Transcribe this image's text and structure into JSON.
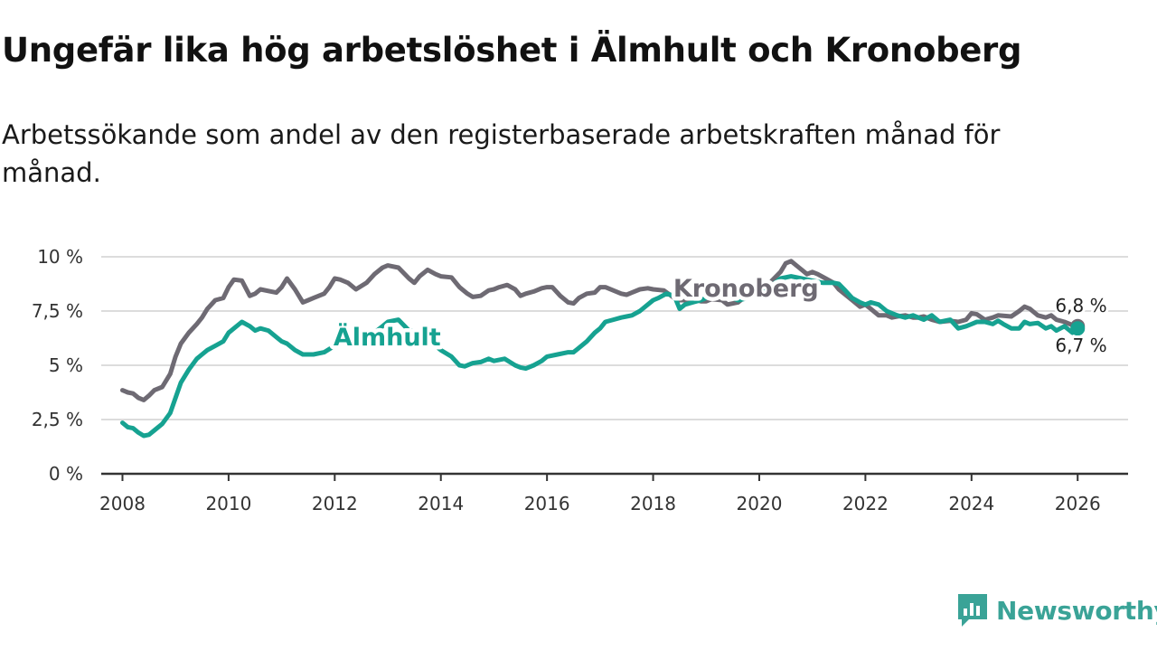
{
  "title": "Ungefär lika hög arbetslöshet i Älmhult och Kronoberg",
  "subtitle": "Arbetssökande som andel av den registerbaserade arbetskraften månad för månad.",
  "logo": {
    "text": "Newsworthy",
    "icon": "newsworthy-logo-icon"
  },
  "colors": {
    "almhult": "#16a291",
    "kronoberg": "#6e6a73",
    "grid": "#dcdcdc",
    "axis": "#333333"
  },
  "chart_data": {
    "type": "line",
    "title": "Ungefär lika hög arbetslöshet i Älmhult och Kronoberg",
    "xlabel": "",
    "ylabel": "",
    "xlim": [
      2007.6,
      2026.95
    ],
    "ylim": [
      0,
      10
    ],
    "x_ticks": [
      {
        "value": 2008,
        "label": "2008"
      },
      {
        "value": 2010,
        "label": "2010"
      },
      {
        "value": 2012,
        "label": "2012"
      },
      {
        "value": 2014,
        "label": "2014"
      },
      {
        "value": 2016,
        "label": "2016"
      },
      {
        "value": 2018,
        "label": "2018"
      },
      {
        "value": 2020,
        "label": "2020"
      },
      {
        "value": 2022,
        "label": "2022"
      },
      {
        "value": 2024,
        "label": "2024"
      },
      {
        "value": 2026,
        "label": "2026"
      }
    ],
    "y_ticks": [
      {
        "value": 0,
        "label": "0 %"
      },
      {
        "value": 2.5,
        "label": "2,5 %"
      },
      {
        "value": 5,
        "label": "5 %"
      },
      {
        "value": 7.5,
        "label": "7,5 %"
      },
      {
        "value": 10,
        "label": "10 %"
      }
    ],
    "grid": true,
    "series": [
      {
        "name": "Kronoberg",
        "label": "Kronoberg",
        "end_label": "6,8 %",
        "points": [
          [
            2008.0,
            3.85
          ],
          [
            2008.1,
            3.75
          ],
          [
            2008.2,
            3.7
          ],
          [
            2008.3,
            3.5
          ],
          [
            2008.4,
            3.4
          ],
          [
            2008.5,
            3.6
          ],
          [
            2008.6,
            3.85
          ],
          [
            2008.75,
            4.0
          ],
          [
            2008.9,
            4.6
          ],
          [
            2009.0,
            5.4
          ],
          [
            2009.1,
            6.0
          ],
          [
            2009.25,
            6.5
          ],
          [
            2009.4,
            6.9
          ],
          [
            2009.5,
            7.2
          ],
          [
            2009.6,
            7.6
          ],
          [
            2009.75,
            8.0
          ],
          [
            2009.9,
            8.1
          ],
          [
            2010.0,
            8.6
          ],
          [
            2010.1,
            8.95
          ],
          [
            2010.25,
            8.9
          ],
          [
            2010.4,
            8.2
          ],
          [
            2010.5,
            8.3
          ],
          [
            2010.6,
            8.5
          ],
          [
            2010.8,
            8.4
          ],
          [
            2010.9,
            8.35
          ],
          [
            2011.0,
            8.6
          ],
          [
            2011.1,
            9.0
          ],
          [
            2011.25,
            8.5
          ],
          [
            2011.4,
            7.9
          ],
          [
            2011.5,
            8.0
          ],
          [
            2011.6,
            8.1
          ],
          [
            2011.8,
            8.3
          ],
          [
            2011.9,
            8.6
          ],
          [
            2012.0,
            9.0
          ],
          [
            2012.1,
            8.95
          ],
          [
            2012.25,
            8.8
          ],
          [
            2012.4,
            8.5
          ],
          [
            2012.6,
            8.8
          ],
          [
            2012.75,
            9.2
          ],
          [
            2012.9,
            9.5
          ],
          [
            2013.0,
            9.6
          ],
          [
            2013.2,
            9.5
          ],
          [
            2013.4,
            9.0
          ],
          [
            2013.5,
            8.8
          ],
          [
            2013.6,
            9.1
          ],
          [
            2013.75,
            9.4
          ],
          [
            2013.9,
            9.2
          ],
          [
            2014.0,
            9.1
          ],
          [
            2014.2,
            9.05
          ],
          [
            2014.35,
            8.6
          ],
          [
            2014.5,
            8.3
          ],
          [
            2014.6,
            8.15
          ],
          [
            2014.75,
            8.2
          ],
          [
            2014.9,
            8.45
          ],
          [
            2015.0,
            8.5
          ],
          [
            2015.1,
            8.6
          ],
          [
            2015.25,
            8.7
          ],
          [
            2015.4,
            8.5
          ],
          [
            2015.5,
            8.2
          ],
          [
            2015.6,
            8.3
          ],
          [
            2015.75,
            8.4
          ],
          [
            2015.9,
            8.55
          ],
          [
            2016.0,
            8.6
          ],
          [
            2016.1,
            8.6
          ],
          [
            2016.25,
            8.2
          ],
          [
            2016.4,
            7.9
          ],
          [
            2016.5,
            7.85
          ],
          [
            2016.6,
            8.1
          ],
          [
            2016.75,
            8.3
          ],
          [
            2016.9,
            8.35
          ],
          [
            2017.0,
            8.6
          ],
          [
            2017.1,
            8.6
          ],
          [
            2017.25,
            8.45
          ],
          [
            2017.4,
            8.3
          ],
          [
            2017.5,
            8.25
          ],
          [
            2017.6,
            8.35
          ],
          [
            2017.75,
            8.5
          ],
          [
            2017.9,
            8.55
          ],
          [
            2018.0,
            8.5
          ],
          [
            2018.2,
            8.45
          ],
          [
            2018.4,
            8.1
          ],
          [
            2018.5,
            8.0
          ],
          [
            2018.6,
            8.0
          ],
          [
            2018.75,
            8.05
          ],
          [
            2018.9,
            7.95
          ],
          [
            2019.0,
            7.95
          ],
          [
            2019.1,
            8.05
          ],
          [
            2019.3,
            8.0
          ],
          [
            2019.4,
            7.8
          ],
          [
            2019.6,
            7.9
          ],
          [
            2019.75,
            8.2
          ],
          [
            2019.9,
            8.3
          ],
          [
            2020.0,
            8.6
          ],
          [
            2020.2,
            8.8
          ],
          [
            2020.4,
            9.3
          ],
          [
            2020.5,
            9.7
          ],
          [
            2020.6,
            9.8
          ],
          [
            2020.75,
            9.5
          ],
          [
            2020.9,
            9.2
          ],
          [
            2021.0,
            9.3
          ],
          [
            2021.1,
            9.2
          ],
          [
            2021.25,
            9.0
          ],
          [
            2021.4,
            8.8
          ],
          [
            2021.5,
            8.5
          ],
          [
            2021.6,
            8.3
          ],
          [
            2021.75,
            8.0
          ],
          [
            2021.9,
            7.7
          ],
          [
            2022.0,
            7.8
          ],
          [
            2022.1,
            7.6
          ],
          [
            2022.25,
            7.3
          ],
          [
            2022.4,
            7.3
          ],
          [
            2022.5,
            7.2
          ],
          [
            2022.6,
            7.25
          ],
          [
            2022.75,
            7.3
          ],
          [
            2022.9,
            7.2
          ],
          [
            2023.0,
            7.2
          ],
          [
            2023.1,
            7.25
          ],
          [
            2023.25,
            7.1
          ],
          [
            2023.4,
            7.0
          ],
          [
            2023.6,
            7.05
          ],
          [
            2023.75,
            7.0
          ],
          [
            2023.9,
            7.1
          ],
          [
            2024.0,
            7.4
          ],
          [
            2024.1,
            7.35
          ],
          [
            2024.25,
            7.1
          ],
          [
            2024.4,
            7.2
          ],
          [
            2024.5,
            7.3
          ],
          [
            2024.75,
            7.25
          ],
          [
            2024.9,
            7.5
          ],
          [
            2025.0,
            7.7
          ],
          [
            2025.1,
            7.6
          ],
          [
            2025.25,
            7.3
          ],
          [
            2025.4,
            7.2
          ],
          [
            2025.5,
            7.3
          ],
          [
            2025.6,
            7.1
          ],
          [
            2025.75,
            7.0
          ],
          [
            2025.9,
            6.85
          ],
          [
            2026.0,
            6.8
          ]
        ]
      },
      {
        "name": "Älmhult",
        "label": "Älmhult",
        "end_label": "6,7 %",
        "points": [
          [
            2008.0,
            2.35
          ],
          [
            2008.1,
            2.15
          ],
          [
            2008.2,
            2.1
          ],
          [
            2008.3,
            1.9
          ],
          [
            2008.4,
            1.75
          ],
          [
            2008.5,
            1.8
          ],
          [
            2008.6,
            2.0
          ],
          [
            2008.75,
            2.3
          ],
          [
            2008.9,
            2.8
          ],
          [
            2009.0,
            3.5
          ],
          [
            2009.1,
            4.2
          ],
          [
            2009.25,
            4.8
          ],
          [
            2009.4,
            5.3
          ],
          [
            2009.5,
            5.5
          ],
          [
            2009.6,
            5.7
          ],
          [
            2009.75,
            5.9
          ],
          [
            2009.9,
            6.1
          ],
          [
            2010.0,
            6.5
          ],
          [
            2010.1,
            6.7
          ],
          [
            2010.25,
            7.0
          ],
          [
            2010.4,
            6.8
          ],
          [
            2010.5,
            6.6
          ],
          [
            2010.6,
            6.7
          ],
          [
            2010.75,
            6.6
          ],
          [
            2010.9,
            6.3
          ],
          [
            2011.0,
            6.1
          ],
          [
            2011.1,
            6.0
          ],
          [
            2011.25,
            5.7
          ],
          [
            2011.4,
            5.5
          ],
          [
            2011.6,
            5.5
          ],
          [
            2011.8,
            5.6
          ],
          [
            2012.0,
            5.9
          ],
          [
            2012.1,
            6.4
          ],
          [
            2012.25,
            6.3
          ],
          [
            2012.4,
            6.1
          ],
          [
            2012.5,
            6.0
          ],
          [
            2012.6,
            6.1
          ],
          [
            2012.75,
            6.5
          ],
          [
            2012.9,
            6.8
          ],
          [
            2013.0,
            7.0
          ],
          [
            2013.2,
            7.1
          ],
          [
            2013.4,
            6.6
          ],
          [
            2013.6,
            6.5
          ],
          [
            2013.8,
            6.1
          ],
          [
            2014.0,
            5.7
          ],
          [
            2014.2,
            5.4
          ],
          [
            2014.35,
            5.0
          ],
          [
            2014.45,
            4.95
          ],
          [
            2014.6,
            5.1
          ],
          [
            2014.75,
            5.15
          ],
          [
            2014.9,
            5.3
          ],
          [
            2015.0,
            5.2
          ],
          [
            2015.2,
            5.3
          ],
          [
            2015.4,
            5.0
          ],
          [
            2015.5,
            4.9
          ],
          [
            2015.6,
            4.85
          ],
          [
            2015.75,
            5.0
          ],
          [
            2015.9,
            5.2
          ],
          [
            2016.0,
            5.4
          ],
          [
            2016.2,
            5.5
          ],
          [
            2016.4,
            5.6
          ],
          [
            2016.5,
            5.6
          ],
          [
            2016.6,
            5.8
          ],
          [
            2016.75,
            6.1
          ],
          [
            2016.9,
            6.5
          ],
          [
            2017.0,
            6.7
          ],
          [
            2017.1,
            7.0
          ],
          [
            2017.25,
            7.1
          ],
          [
            2017.4,
            7.2
          ],
          [
            2017.5,
            7.25
          ],
          [
            2017.6,
            7.3
          ],
          [
            2017.75,
            7.5
          ],
          [
            2017.9,
            7.8
          ],
          [
            2018.0,
            8.0
          ],
          [
            2018.1,
            8.1
          ],
          [
            2018.25,
            8.3
          ],
          [
            2018.4,
            8.2
          ],
          [
            2018.5,
            7.6
          ],
          [
            2018.6,
            7.8
          ],
          [
            2018.75,
            7.9
          ],
          [
            2018.9,
            8.0
          ],
          [
            2019.0,
            8.1
          ],
          [
            2019.2,
            8.3
          ],
          [
            2019.4,
            8.2
          ],
          [
            2019.6,
            8.0
          ],
          [
            2019.8,
            8.1
          ],
          [
            2020.0,
            8.3
          ],
          [
            2020.2,
            8.6
          ],
          [
            2020.4,
            9.0
          ],
          [
            2020.6,
            9.1
          ],
          [
            2020.8,
            9.0
          ],
          [
            2021.0,
            8.9
          ],
          [
            2021.2,
            8.8
          ],
          [
            2021.4,
            8.8
          ],
          [
            2021.5,
            8.75
          ],
          [
            2021.6,
            8.5
          ],
          [
            2021.75,
            8.1
          ],
          [
            2021.9,
            7.9
          ],
          [
            2022.0,
            7.8
          ],
          [
            2022.1,
            7.9
          ],
          [
            2022.25,
            7.8
          ],
          [
            2022.4,
            7.5
          ],
          [
            2022.5,
            7.4
          ],
          [
            2022.6,
            7.3
          ],
          [
            2022.75,
            7.2
          ],
          [
            2022.9,
            7.3
          ],
          [
            2023.0,
            7.2
          ],
          [
            2023.1,
            7.1
          ],
          [
            2023.25,
            7.3
          ],
          [
            2023.4,
            7.0
          ],
          [
            2023.6,
            7.1
          ],
          [
            2023.75,
            6.7
          ],
          [
            2023.9,
            6.8
          ],
          [
            2024.0,
            6.9
          ],
          [
            2024.1,
            7.0
          ],
          [
            2024.25,
            7.0
          ],
          [
            2024.4,
            6.9
          ],
          [
            2024.5,
            7.05
          ],
          [
            2024.6,
            6.9
          ],
          [
            2024.75,
            6.7
          ],
          [
            2024.9,
            6.7
          ],
          [
            2025.0,
            7.0
          ],
          [
            2025.1,
            6.9
          ],
          [
            2025.25,
            6.95
          ],
          [
            2025.4,
            6.7
          ],
          [
            2025.5,
            6.8
          ],
          [
            2025.6,
            6.6
          ],
          [
            2025.75,
            6.8
          ],
          [
            2025.9,
            6.5
          ],
          [
            2026.0,
            6.7
          ]
        ]
      }
    ]
  }
}
